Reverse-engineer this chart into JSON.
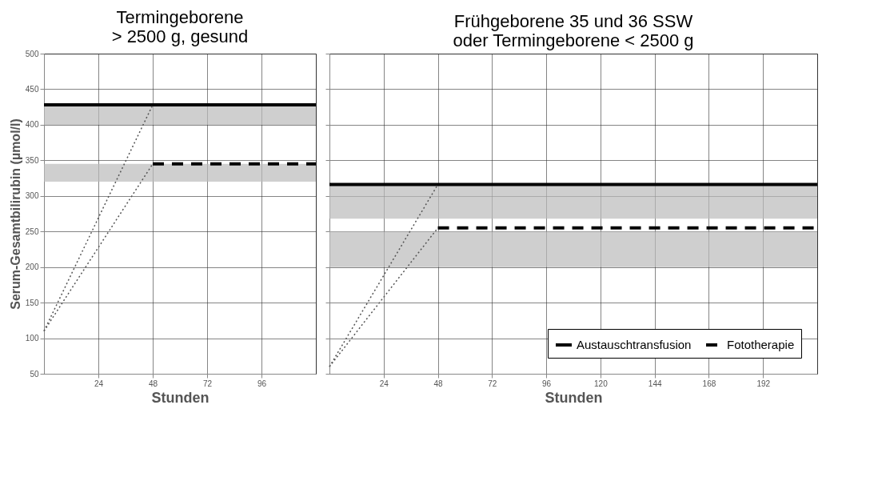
{
  "chart_data": [
    {
      "type": "line",
      "title": "Termingeborene\n> 2500 g, gesund",
      "xlabel": "Stunden",
      "ylabel": "Serum-Gesamtbilirubin (µmol/l)",
      "xlim": [
        0,
        120
      ],
      "xticks": [
        24,
        48,
        72,
        96
      ],
      "ylim": [
        50,
        500
      ],
      "yticks": [
        50,
        100,
        150,
        200,
        250,
        300,
        350,
        400,
        450,
        500
      ],
      "grid": true,
      "legend": false,
      "series": [
        {
          "color": "#000000",
          "line_style": "solid",
          "x": [
            0,
            120
          ],
          "values": [
            428,
            428
          ]
        },
        {
          "color": "#000000",
          "line_style": "dashed",
          "x": [
            48,
            120
          ],
          "values": [
            345,
            345
          ]
        },
        {
          "color": "#555555",
          "line_style": "dotted",
          "x": [
            0,
            48
          ],
          "values": [
            110,
            428
          ]
        },
        {
          "color": "#555555",
          "line_style": "dotted",
          "x": [
            0,
            48
          ],
          "values": [
            110,
            345
          ]
        }
      ],
      "bands": [
        {
          "axis": "y",
          "from": 400,
          "to": 428,
          "color": "#bbbbbb"
        },
        {
          "axis": "y",
          "from": 320,
          "to": 345,
          "color": "#bbbbbb"
        }
      ]
    },
    {
      "type": "line",
      "title": "Frühgeborene 35 und 36 SSW\noder Termingeborene < 2500 g",
      "xlabel": "Stunden",
      "xlim": [
        0,
        216
      ],
      "xticks": [
        24,
        48,
        72,
        96,
        120,
        144,
        168,
        192
      ],
      "ylim": [
        50,
        500
      ],
      "yticks": [
        50,
        100,
        150,
        200,
        250,
        300,
        350,
        400,
        450,
        500
      ],
      "grid": true,
      "tick_labels": "x",
      "legend": "bottom right",
      "series": [
        {
          "name": "Austauschtransfusion",
          "color": "#000000",
          "line_style": "solid",
          "x": [
            0,
            216
          ],
          "values": [
            316,
            316
          ]
        },
        {
          "name": "Fototherapie",
          "color": "#000000",
          "line_style": "dashed",
          "x": [
            48,
            216
          ],
          "values": [
            255,
            255
          ]
        },
        {
          "color": "#555555",
          "line_style": "dotted",
          "x": [
            0,
            48
          ],
          "values": [
            60,
            316
          ]
        },
        {
          "color": "#555555",
          "line_style": "dotted",
          "x": [
            0,
            48
          ],
          "values": [
            60,
            255
          ]
        }
      ],
      "bands": [
        {
          "axis": "y",
          "from": 268,
          "to": 316,
          "color": "#bbbbbb"
        },
        {
          "axis": "y",
          "from": 200,
          "to": 250,
          "color": "#bbbbbb"
        }
      ]
    }
  ]
}
